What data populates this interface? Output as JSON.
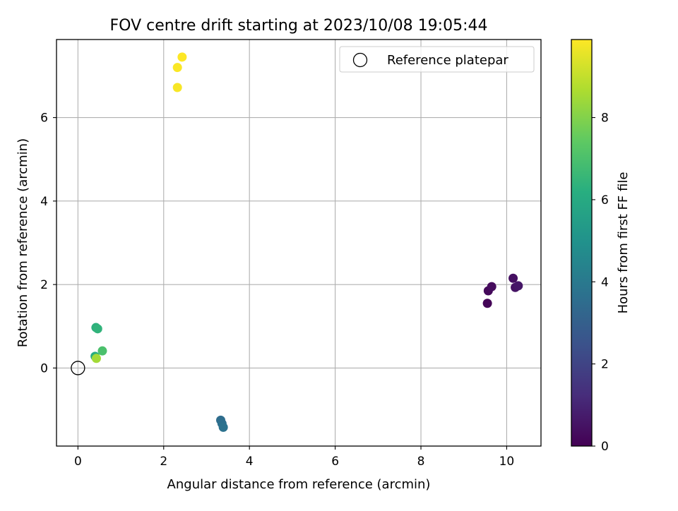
{
  "chart_data": {
    "type": "scatter",
    "title": "FOV centre drift starting at 2023/10/08 19:05:44",
    "xlabel": "Angular distance from reference (arcmin)",
    "ylabel": "Rotation from reference (arcmin)",
    "xlim": [
      -0.5,
      10.8
    ],
    "ylim": [
      -1.87,
      7.87
    ],
    "x_ticks": [
      0,
      2,
      4,
      6,
      8,
      10
    ],
    "y_ticks": [
      0,
      2,
      4,
      6
    ],
    "grid": true,
    "legend": {
      "placement": "upper right",
      "entries": [
        {
          "label": "Reference platepar",
          "marker": "open-circle",
          "color": "#000000"
        }
      ]
    },
    "reference_point": {
      "x": 0,
      "y": 0
    },
    "colorbar": {
      "label": "Hours from first FF file",
      "cmap": "viridis",
      "range": [
        0,
        9.9
      ],
      "ticks": [
        0,
        2,
        4,
        6,
        8
      ]
    },
    "points": [
      {
        "x": 9.55,
        "y": 1.55,
        "hours": 0.1
      },
      {
        "x": 9.57,
        "y": 1.85,
        "hours": 0.2
      },
      {
        "x": 9.65,
        "y": 1.95,
        "hours": 0.3
      },
      {
        "x": 10.15,
        "y": 2.15,
        "hours": 0.4
      },
      {
        "x": 10.2,
        "y": 1.93,
        "hours": 0.5
      },
      {
        "x": 10.27,
        "y": 1.97,
        "hours": 0.6
      },
      {
        "x": 3.33,
        "y": -1.25,
        "hours": 3.5
      },
      {
        "x": 3.36,
        "y": -1.33,
        "hours": 3.6
      },
      {
        "x": 3.39,
        "y": -1.42,
        "hours": 3.7
      },
      {
        "x": 0.4,
        "y": 0.28,
        "hours": 6.1
      },
      {
        "x": 0.42,
        "y": 0.97,
        "hours": 6.3
      },
      {
        "x": 0.46,
        "y": 0.94,
        "hours": 6.4
      },
      {
        "x": 0.57,
        "y": 0.41,
        "hours": 7.0
      },
      {
        "x": 0.43,
        "y": 0.23,
        "hours": 8.5
      },
      {
        "x": 2.32,
        "y": 6.72,
        "hours": 9.8
      },
      {
        "x": 2.32,
        "y": 7.2,
        "hours": 9.85
      },
      {
        "x": 2.43,
        "y": 7.45,
        "hours": 9.9
      }
    ]
  }
}
